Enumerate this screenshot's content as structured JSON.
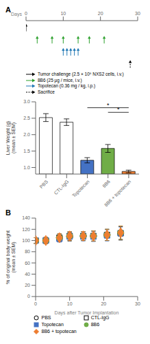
{
  "chart_data": [
    {
      "type": "timeline",
      "title": "A",
      "xlabel": "Days",
      "xlim": [
        0,
        30
      ],
      "xticks": [
        0,
        10,
        20,
        30
      ],
      "legend": "bottom",
      "series": [
        {
          "name": "Tumor challenge (2.5 × 10⁵ NXS2 cells, i.v.)",
          "color": "black",
          "marker": "arrow",
          "values": [
            0
          ]
        },
        {
          "name": "8B6 (25 µg / mice, i.v.)",
          "color": "#2ca02c",
          "marker": "arrow",
          "values": [
            3,
            7,
            10,
            14,
            17,
            21
          ]
        },
        {
          "name": "Topotecan (0.36 mg / kg, i.p.)",
          "color": "#1f77b4",
          "marker": "arrow",
          "values": [
            10,
            11,
            12,
            13,
            14
          ]
        },
        {
          "name": "Sacrifice",
          "color": "black",
          "marker": "arrow",
          "line_style": "dashed",
          "values": [
            28
          ]
        }
      ]
    },
    {
      "type": "bar",
      "categories": [
        "PBS",
        "CTL-IgG",
        "Topotecan",
        "8B6",
        "8B6 + topotecan"
      ],
      "values": [
        2.52,
        2.38,
        1.22,
        1.58,
        0.88
      ],
      "errors": [
        0.12,
        0.1,
        0.08,
        0.12,
        0.04
      ],
      "colors": [
        "white",
        "white",
        "#4472C4",
        "#70AD47",
        "#ED7D31"
      ],
      "ylabel": "Liver Weight (g)\n(mean ± SEM)",
      "ylim": [
        0.8,
        3
      ],
      "yticks": [
        {
          "value": 1,
          "label": "1.0"
        },
        1.5,
        {
          "value": 2,
          "label": "2.0"
        },
        2.5,
        {
          "value": 3,
          "label": "3.0"
        }
      ],
      "annotations": [
        {
          "text": "*",
          "x1": "Topotecan",
          "x2": "8B6 + topotecan",
          "y": 2.82
        },
        {
          "text": "*",
          "x1": "8B6",
          "x2": "8B6 + topotecan",
          "y": 2.68
        }
      ]
    },
    {
      "type": "scatter",
      "title": "B",
      "x": [
        0,
        3,
        7,
        10,
        14,
        17,
        21,
        25
      ],
      "series": [
        {
          "name": "PBS",
          "color": "black",
          "marker": "open-circle",
          "values": [
            100,
            100,
            105,
            107,
            108,
            108,
            110,
            113
          ],
          "errors": [
            5,
            6,
            7,
            8,
            8,
            9,
            10,
            12
          ]
        },
        {
          "name": "CTL-IgG",
          "color": "black",
          "marker": "open-square",
          "values": [
            100,
            100,
            105,
            108,
            108,
            108,
            110,
            113
          ],
          "errors": [
            5,
            6,
            7,
            8,
            8,
            9,
            10,
            12
          ]
        },
        {
          "name": "Topotecan",
          "color": "#4472C4",
          "marker": "square",
          "values": [
            100,
            100,
            103,
            107,
            107,
            107,
            109,
            113
          ],
          "errors": [
            5,
            6,
            6,
            7,
            8,
            9,
            10,
            11
          ]
        },
        {
          "name": "8B6",
          "color": "#70AD47",
          "marker": "circle",
          "values": [
            100,
            100,
            105,
            108,
            108,
            108,
            110,
            114
          ],
          "errors": [
            5,
            6,
            7,
            8,
            8,
            9,
            10,
            12
          ]
        },
        {
          "name": "8B6 + topotecan",
          "color": "#ED7D31",
          "marker": "diamond",
          "values": [
            100,
            100,
            105,
            108,
            108,
            108,
            110,
            114
          ],
          "errors": [
            5,
            6,
            7,
            8,
            8,
            9,
            10,
            12
          ]
        }
      ],
      "xlabel": "Days after Tumor Implantation",
      "ylabel": "% of original body weight\n(mean ± SEM)",
      "xlim": [
        0,
        30
      ],
      "xticks": [
        0,
        10,
        20,
        30
      ],
      "ylim": [
        0,
        140
      ],
      "yticks": [
        0,
        20,
        40,
        60,
        80,
        100,
        120,
        140
      ],
      "legend": "bottom"
    }
  ]
}
